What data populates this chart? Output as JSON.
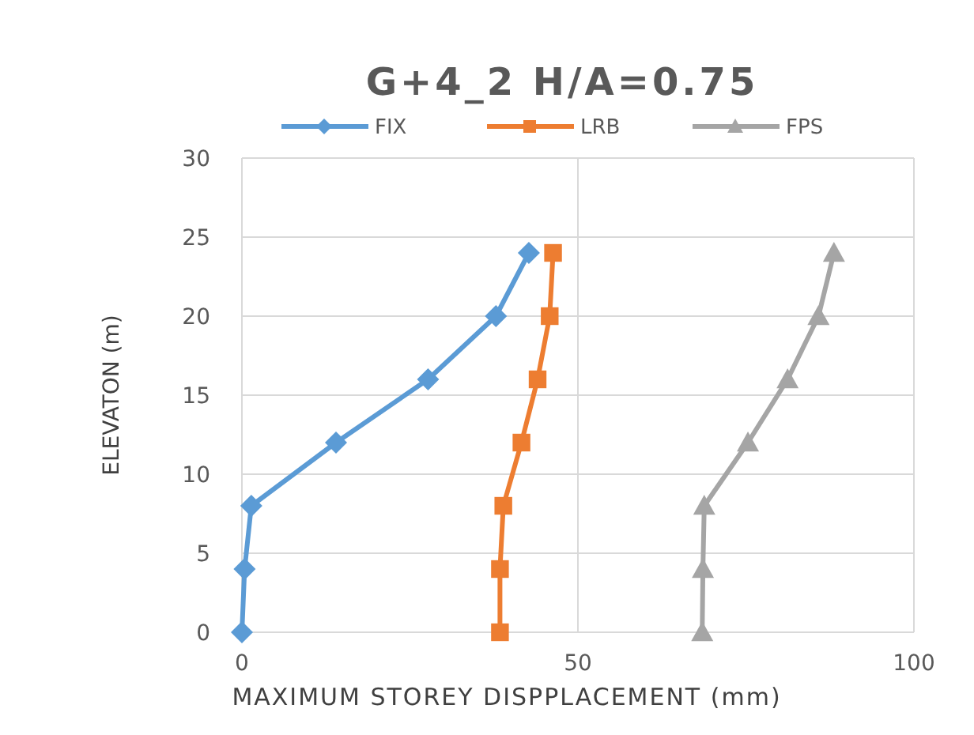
{
  "chart_data": {
    "type": "line",
    "title": "G+4_2 H/A=0.75",
    "xlabel": "MAXIMUM  STOREY DISPPLACEMENT  (mm)",
    "ylabel": "ELEVATON (m)",
    "xlim": [
      0,
      100
    ],
    "xticks": [
      0,
      50,
      100
    ],
    "ylim": [
      0,
      30
    ],
    "yticks": [
      0,
      5,
      10,
      15,
      20,
      25,
      30
    ],
    "grid": true,
    "legend": "top",
    "series": [
      {
        "name": "FIX",
        "color": "#5b9bd5",
        "marker": "diamond",
        "x": [
          0,
          0.4,
          1.4,
          14,
          27.7,
          37.8,
          42.7
        ],
        "values": [
          0,
          4,
          8,
          12,
          16,
          20,
          24
        ]
      },
      {
        "name": "LRB",
        "color": "#ed7d31",
        "marker": "square",
        "x": [
          38.4,
          38.4,
          38.9,
          41.6,
          44,
          45.8,
          46.3
        ],
        "values": [
          0,
          4,
          8,
          12,
          16,
          20,
          24
        ]
      },
      {
        "name": "FPS",
        "color": "#a5a5a5",
        "marker": "triangle",
        "x": [
          68.5,
          68.6,
          68.8,
          75.3,
          81.2,
          85.8,
          88.1
        ],
        "values": [
          0,
          4,
          8,
          12,
          16,
          20,
          24
        ]
      }
    ]
  }
}
